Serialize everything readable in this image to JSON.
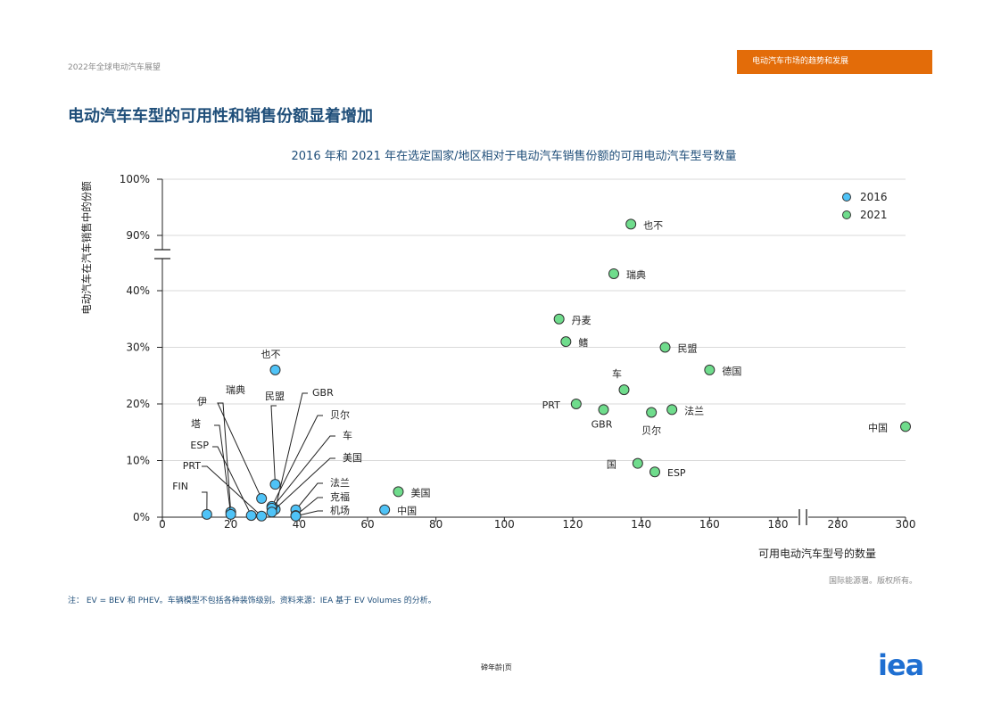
{
  "header": {
    "report_title": "2022年全球电动汽车展望",
    "section_tag": "电动汽车市场的趋势和发展",
    "heading": "电动汽车车型的可用性和销售份额显着增加"
  },
  "colors": {
    "accent": "#e36c09",
    "heading": "#1f4e79",
    "series_2016": "#4fc3f7",
    "series_2021": "#6fdc8c",
    "logo": "#1f6fd1"
  },
  "chart_data": {
    "type": "scatter",
    "title": "2016 年和 2021 年在选定国家/地区相对于电动汽车销售份额的可用电动汽车型号数量",
    "xlabel": "可用电动汽车型号的数量",
    "ylabel": "电动汽车在汽车销售中的份额",
    "y_ticks": [
      "0%",
      "10%",
      "20%",
      "30%",
      "40%",
      "90%",
      "100%"
    ],
    "x_ticks": [
      "0",
      "20",
      "40",
      "60",
      "80",
      "100",
      "120",
      "140",
      "160",
      "180",
      "280",
      "300"
    ],
    "x_break": [
      190,
      270
    ],
    "y_break": [
      45,
      85
    ],
    "grid": true,
    "legend": "top-right",
    "series": [
      {
        "name": "2016",
        "points": [
          {
            "label": "也不",
            "x": 33,
            "y": 26
          },
          {
            "label": "瑞典",
            "x": 29,
            "y": 3.3
          },
          {
            "label": "民盟",
            "x": 33,
            "y": 5.8
          },
          {
            "label": "GBR",
            "x": 33,
            "y": 1.4
          },
          {
            "label": "贝尔",
            "x": 32,
            "y": 1.9
          },
          {
            "label": "车",
            "x": 32,
            "y": 1.6
          },
          {
            "label": "美国",
            "x": 32,
            "y": 0.9
          },
          {
            "label": "法兰",
            "x": 39,
            "y": 1.3
          },
          {
            "label": "克福",
            "x": 39,
            "y": 0.3
          },
          {
            "label": "机场",
            "x": 39,
            "y": 0.2
          },
          {
            "label": "中国",
            "x": 65,
            "y": 1.3
          },
          {
            "label": "伊",
            "x": 20,
            "y": 0.9
          },
          {
            "label": "塔",
            "x": 20,
            "y": 0.5
          },
          {
            "label": "ESP",
            "x": 26,
            "y": 0.3
          },
          {
            "label": "PRT",
            "x": 29,
            "y": 0.2
          },
          {
            "label": "FIN",
            "x": 13,
            "y": 0.5
          }
        ]
      },
      {
        "name": "2021",
        "points": [
          {
            "label": "也不",
            "x": 137,
            "y": 92
          },
          {
            "label": "瑞典",
            "x": 132,
            "y": 43
          },
          {
            "label": "丹麦",
            "x": 116,
            "y": 35
          },
          {
            "label": "鳍",
            "x": 118,
            "y": 31
          },
          {
            "label": "民盟",
            "x": 147,
            "y": 30
          },
          {
            "label": "德国",
            "x": 160,
            "y": 26
          },
          {
            "label": "车",
            "x": 135,
            "y": 22.5
          },
          {
            "label": "PRT",
            "x": 121,
            "y": 20
          },
          {
            "label": "GBR",
            "x": 129,
            "y": 19
          },
          {
            "label": "贝尔",
            "x": 143,
            "y": 18.5
          },
          {
            "label": "法兰",
            "x": 149,
            "y": 19
          },
          {
            "label": "中国",
            "x": 300,
            "y": 16
          },
          {
            "label": "国",
            "x": 139,
            "y": 9.5
          },
          {
            "label": "ESP",
            "x": 144,
            "y": 8
          },
          {
            "label": "美国",
            "x": 69,
            "y": 4.5
          }
        ]
      }
    ]
  },
  "footer": {
    "rights": "国际能源署。版权所有。",
    "note": "注：  EV = BEV 和 PHEV。车辆模型不包括各种装饰级别。资料来源：IEA 基于 EV Volumes 的分析。",
    "page": "碲年龄|页",
    "logo_text": "iea"
  }
}
